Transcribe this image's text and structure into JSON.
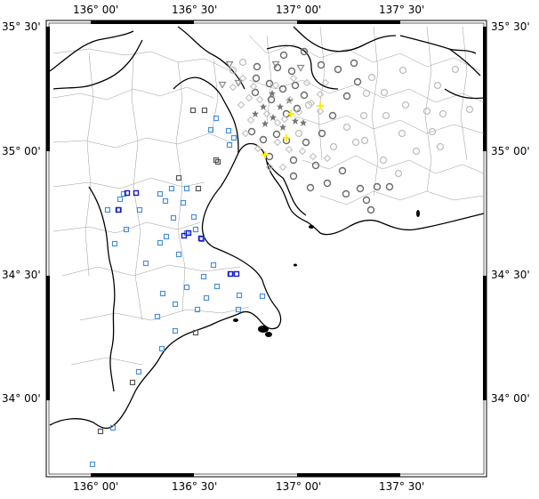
{
  "map": {
    "lon_labels": [
      "136° 00'",
      "136° 30'",
      "137° 00'",
      "137° 30'"
    ],
    "lat_labels": [
      "35° 30'",
      "35° 00'",
      "34° 30'",
      "34° 00'"
    ],
    "colors": {
      "land_outline": "#000000",
      "admin_boundary": "#9a9a9a",
      "gray_circle": "#6a6a6a",
      "light_circle": "#bdbdbd",
      "blue_square": "#4a90d9",
      "dark_blue_square": "#1a1acc",
      "dark_gray_square": "#555555",
      "star": "#777777",
      "yellow_marker": "#ffee00"
    }
  }
}
